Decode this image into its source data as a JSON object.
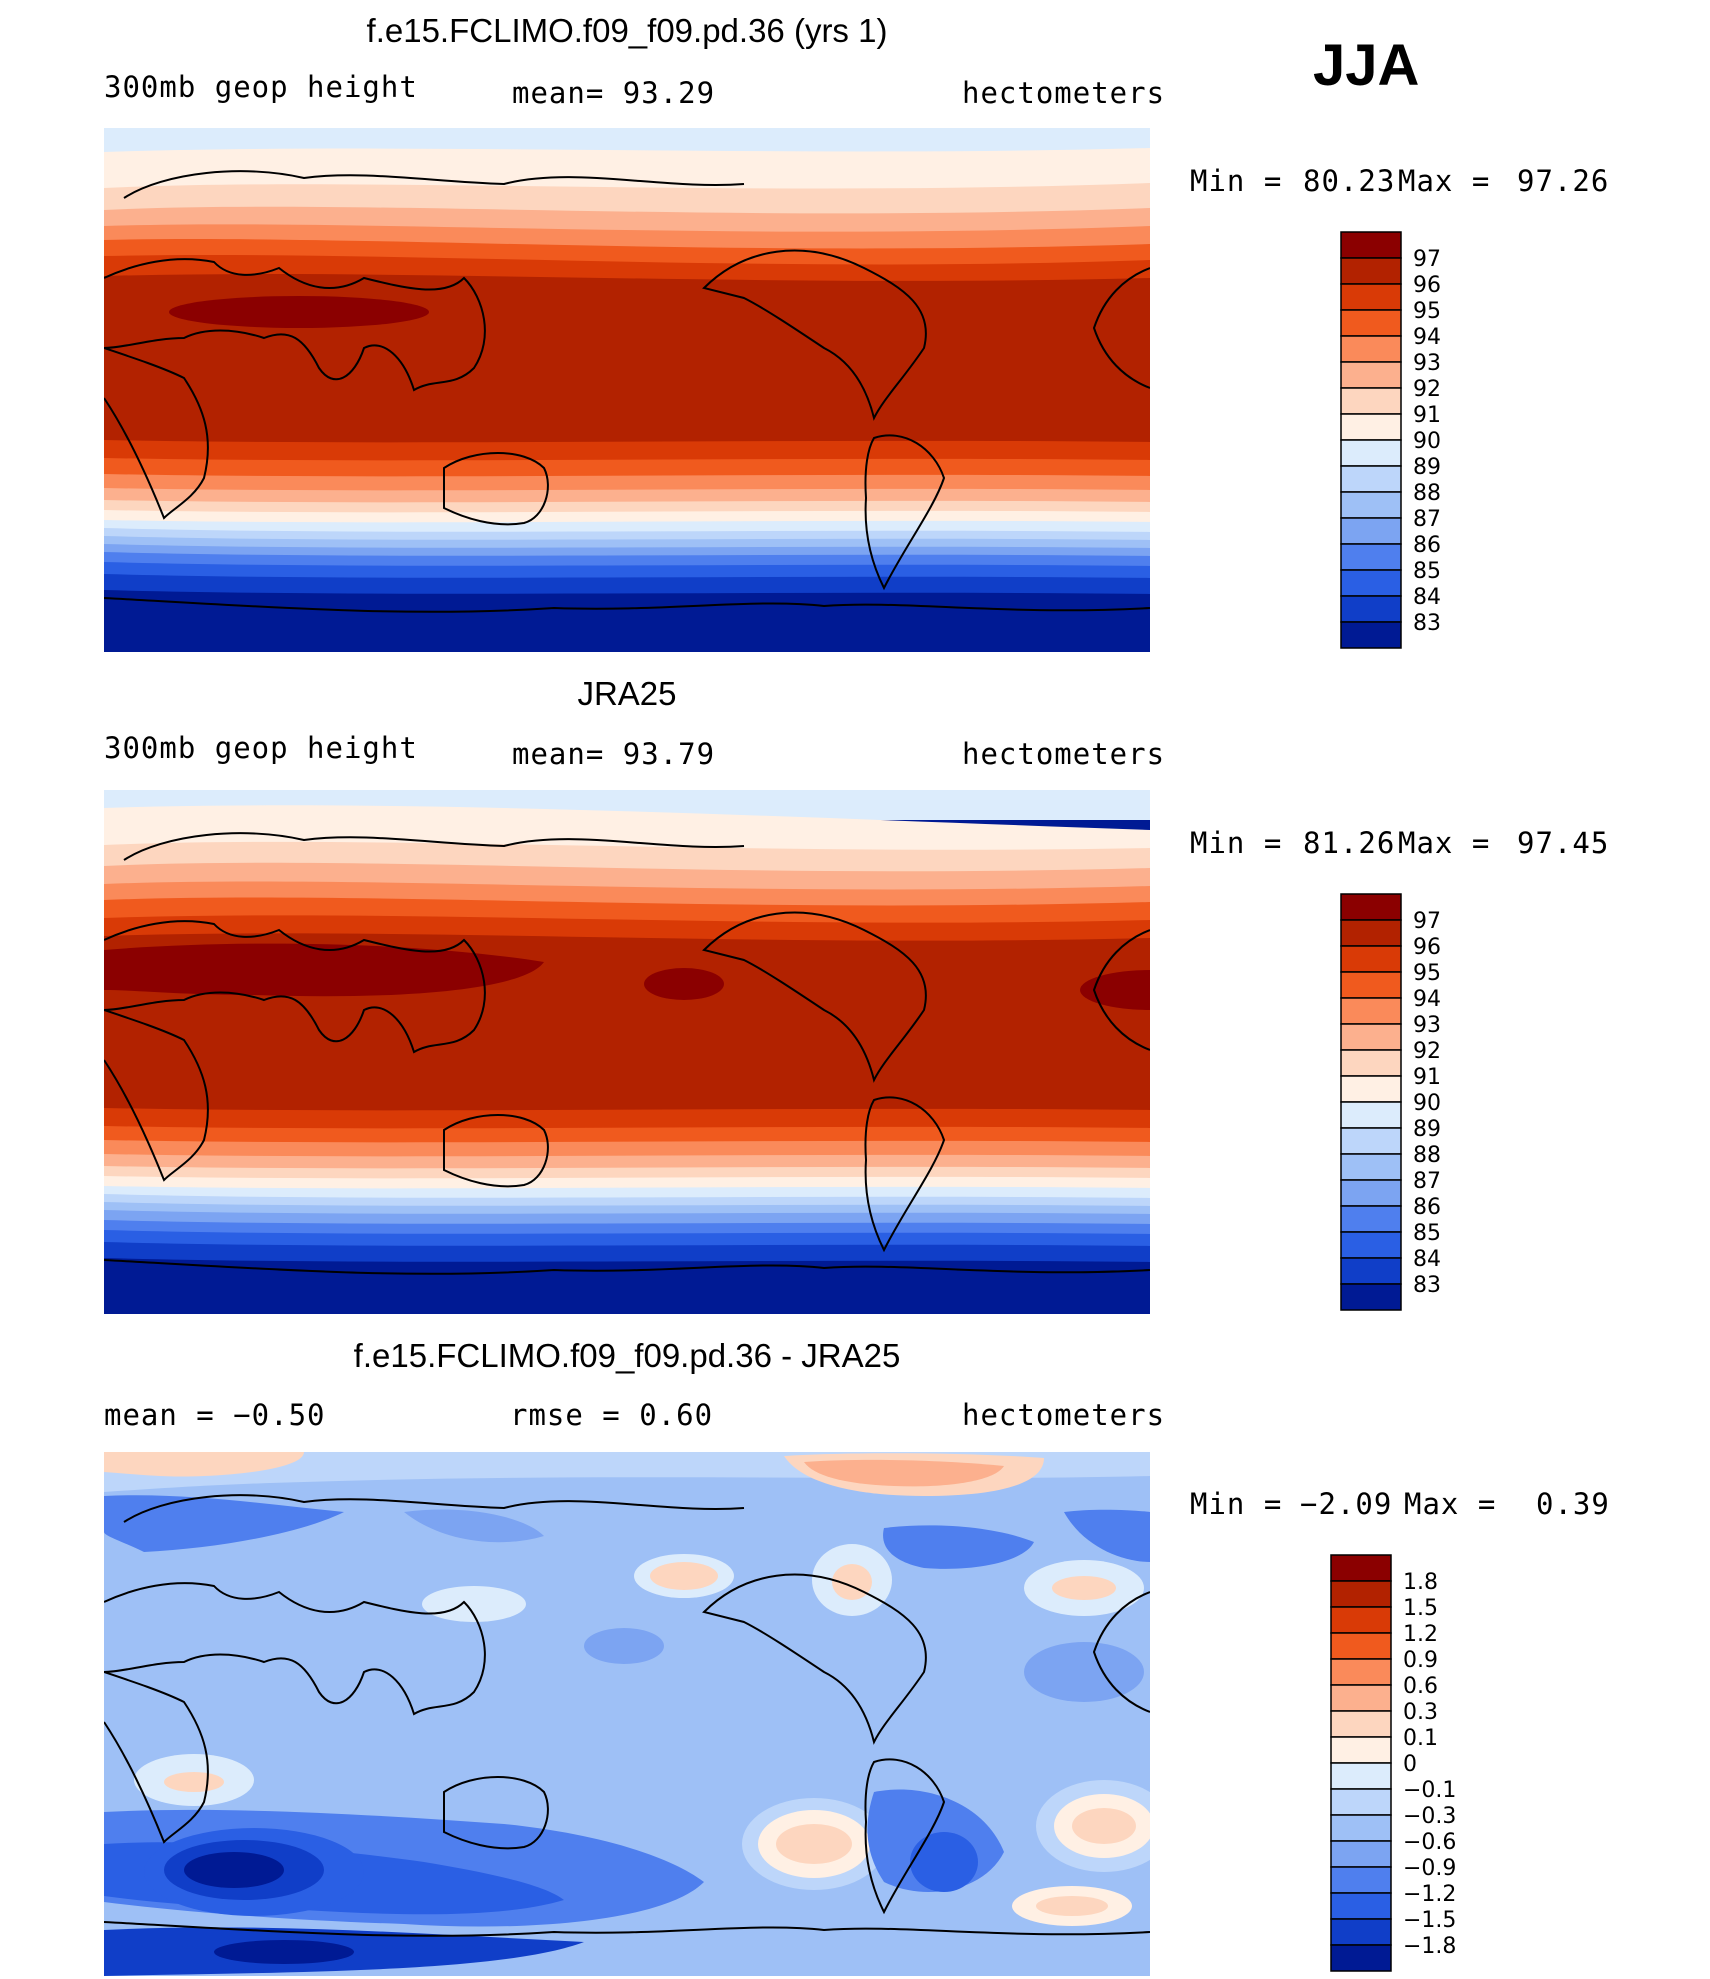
{
  "season": "JJA",
  "panels": [
    {
      "title": "f.e15.FCLIMO.f09_f09.pd.36 (yrs 1)",
      "left_text": "300mb geop height",
      "center_text": "mean=  93.29",
      "units": "hectometers",
      "min_label": "Min =",
      "min_value": "80.23",
      "max_label": "Max =",
      "max_value": "97.26",
      "colorbar_labels": [
        "97",
        "96",
        "95",
        "94",
        "93",
        "92",
        "91",
        "90",
        "89",
        "88",
        "87",
        "86",
        "85",
        "84",
        "83"
      ]
    },
    {
      "title": "JRA25",
      "left_text": "300mb geop height",
      "center_text": "mean=  93.79",
      "units": "hectometers",
      "min_label": "Min =",
      "min_value": "81.26",
      "max_label": "Max =",
      "max_value": "97.45",
      "colorbar_labels": [
        "97",
        "96",
        "95",
        "94",
        "93",
        "92",
        "91",
        "90",
        "89",
        "88",
        "87",
        "86",
        "85",
        "84",
        "83"
      ]
    },
    {
      "title": "f.e15.FCLIMO.f09_f09.pd.36 - JRA25",
      "left_text": "mean =   −0.50",
      "center_text": "rmse =    0.60",
      "units": "hectometers",
      "min_label": "Min =",
      "min_value": "−2.09",
      "max_label": "Max =",
      "max_value": "0.39",
      "colorbar_labels": [
        "1.8",
        "1.5",
        "1.2",
        "0.9",
        "0.6",
        "0.3",
        "0.1",
        "0",
        "−0.1",
        "−0.3",
        "−0.6",
        "−0.9",
        "−1.2",
        "−1.5",
        "−1.8"
      ]
    }
  ],
  "palette": [
    "#8b0000",
    "#b22200",
    "#d93a06",
    "#f05a1e",
    "#fa8a5a",
    "#fcb08e",
    "#fdd6bf",
    "#fff0e4",
    "#dcecfc",
    "#bdd6fa",
    "#9ec0f6",
    "#7ca4f2",
    "#4f7fee",
    "#2a5fe4",
    "#103ec8",
    "#001a94"
  ]
}
